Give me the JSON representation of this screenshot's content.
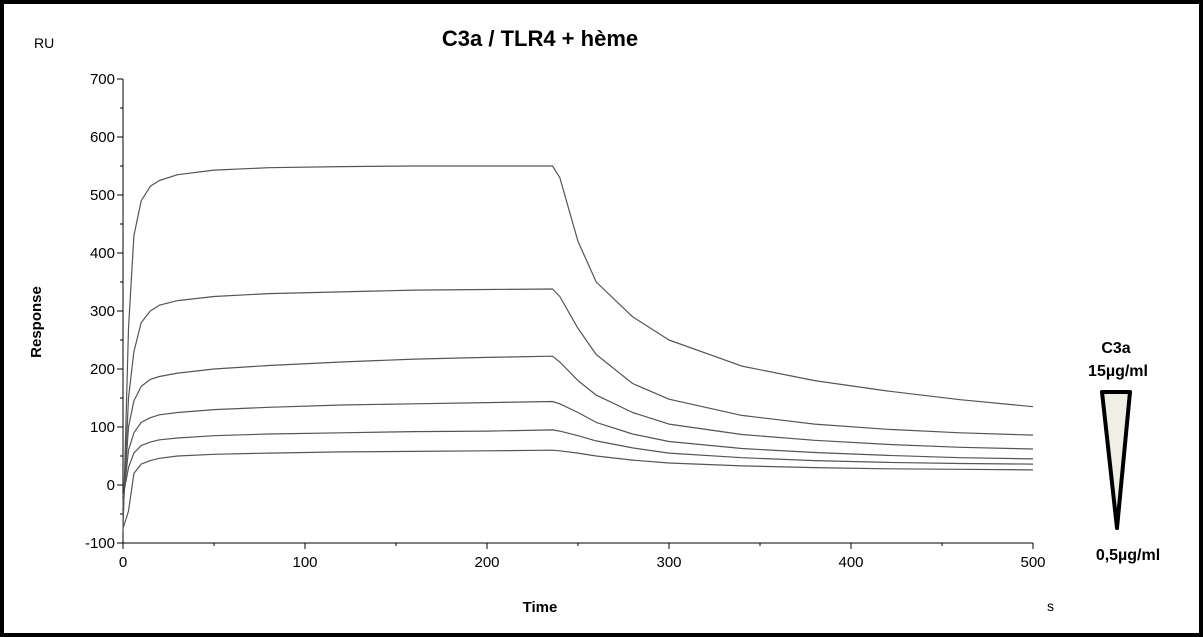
{
  "chart_data": {
    "type": "line",
    "title": "C3a / TLR4 + hème",
    "xlabel": "Time",
    "ylabel": "Response",
    "x_unit": "s",
    "y_unit": "RU",
    "xlim": [
      0,
      500
    ],
    "ylim": [
      -100,
      700
    ],
    "x_ticks": [
      0,
      100,
      200,
      300,
      400,
      500
    ],
    "y_ticks": [
      -100,
      0,
      100,
      200,
      300,
      400,
      500,
      600,
      700
    ],
    "grid": false,
    "line_color": "#555555",
    "series": [
      {
        "x": [
          0,
          3,
          6,
          10,
          15,
          20,
          30,
          50,
          80,
          120,
          160,
          200,
          236,
          240,
          250,
          260,
          280,
          300,
          340,
          380,
          420,
          460,
          500
        ],
        "values": [
          -80,
          270,
          430,
          490,
          515,
          525,
          535,
          543,
          547,
          549,
          550,
          550,
          550,
          530,
          420,
          350,
          290,
          250,
          205,
          180,
          162,
          147,
          135
        ]
      },
      {
        "x": [
          0,
          3,
          6,
          10,
          15,
          20,
          30,
          50,
          80,
          120,
          160,
          200,
          236,
          240,
          250,
          260,
          280,
          300,
          340,
          380,
          420,
          460,
          500
        ],
        "values": [
          -60,
          150,
          230,
          280,
          300,
          310,
          318,
          325,
          330,
          333,
          336,
          337,
          338,
          325,
          270,
          225,
          175,
          148,
          120,
          105,
          96,
          90,
          86
        ]
      },
      {
        "x": [
          0,
          3,
          6,
          10,
          15,
          20,
          30,
          50,
          80,
          120,
          160,
          200,
          236,
          240,
          250,
          260,
          280,
          300,
          340,
          380,
          420,
          460,
          500
        ],
        "values": [
          -40,
          100,
          145,
          170,
          182,
          187,
          193,
          200,
          206,
          212,
          217,
          220,
          222,
          212,
          180,
          155,
          125,
          105,
          87,
          77,
          70,
          65,
          62
        ]
      },
      {
        "x": [
          0,
          3,
          6,
          10,
          15,
          20,
          30,
          50,
          80,
          120,
          160,
          200,
          236,
          240,
          250,
          260,
          280,
          300,
          340,
          380,
          420,
          460,
          500
        ],
        "values": [
          -30,
          60,
          90,
          108,
          116,
          121,
          125,
          130,
          134,
          138,
          140,
          142,
          144,
          140,
          125,
          108,
          88,
          75,
          63,
          56,
          51,
          47,
          45
        ]
      },
      {
        "x": [
          0,
          3,
          6,
          10,
          15,
          20,
          30,
          50,
          80,
          120,
          160,
          200,
          236,
          240,
          250,
          260,
          280,
          300,
          340,
          380,
          420,
          460,
          500
        ],
        "values": [
          -20,
          30,
          55,
          68,
          74,
          78,
          81,
          85,
          88,
          90,
          92,
          93,
          95,
          93,
          85,
          76,
          64,
          55,
          47,
          42,
          39,
          37,
          36
        ]
      },
      {
        "x": [
          0,
          3,
          6,
          10,
          15,
          20,
          30,
          50,
          80,
          120,
          160,
          200,
          236,
          240,
          250,
          260,
          280,
          300,
          340,
          380,
          420,
          460,
          500
        ],
        "values": [
          -75,
          -45,
          20,
          36,
          42,
          46,
          50,
          53,
          55,
          57,
          58,
          59,
          60,
          59,
          55,
          50,
          43,
          38,
          33,
          30,
          28,
          27,
          26
        ]
      }
    ],
    "legend": {
      "label": "C3a",
      "high": "15µg/ml",
      "low": "0,5µg/ml"
    }
  }
}
